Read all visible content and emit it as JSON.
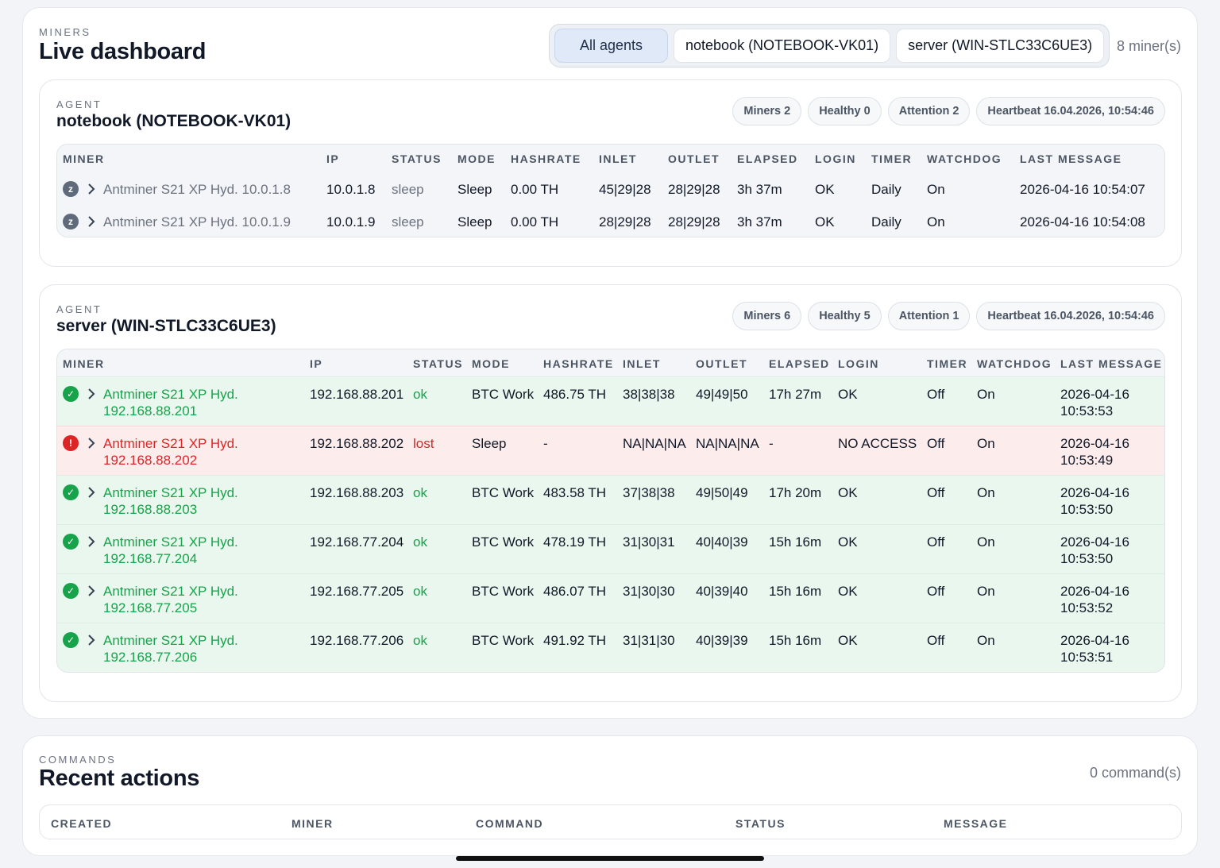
{
  "header": {
    "eyebrow": "MINERS",
    "title": "Live dashboard",
    "filters": [
      "All agents",
      "notebook (NOTEBOOK-VK01)",
      "server (WIN-STLC33C6UE3)"
    ],
    "active_filter": "All agents",
    "miner_count": "8 miner(s)"
  },
  "table_columns": [
    "MINER",
    "IP",
    "STATUS",
    "MODE",
    "HASHRATE",
    "INLET",
    "OUTLET",
    "ELAPSED",
    "LOGIN",
    "TIMER",
    "WATCHDOG",
    "LAST MESSAGE"
  ],
  "agents": [
    {
      "eyebrow": "AGENT",
      "name": "notebook (NOTEBOOK-VK01)",
      "pills": [
        "Miners 2",
        "Healthy 0",
        "Attention 2",
        "Heartbeat 16.04.2026, 10:54:46"
      ],
      "rows": [
        {
          "state": "sleep",
          "icon": "sleep-icon",
          "icon_glyph": "z",
          "miner": "Antminer S21 XP Hyd. 10.0.1.8",
          "ip": "10.0.1.8",
          "status": "sleep",
          "mode": "Sleep",
          "hashrate": "0.00 TH",
          "inlet": "45|29|28",
          "outlet": "28|29|28",
          "elapsed": "3h 37m",
          "login": "OK",
          "timer": "Daily",
          "watchdog": "On",
          "last_message": "2026-04-16 10:54:07"
        },
        {
          "state": "sleep",
          "icon": "sleep-icon",
          "icon_glyph": "z",
          "miner": "Antminer S21 XP Hyd. 10.0.1.9",
          "ip": "10.0.1.9",
          "status": "sleep",
          "mode": "Sleep",
          "hashrate": "0.00 TH",
          "inlet": "28|29|28",
          "outlet": "28|29|28",
          "elapsed": "3h 37m",
          "login": "OK",
          "timer": "Daily",
          "watchdog": "On",
          "last_message": "2026-04-16 10:54:08"
        }
      ]
    },
    {
      "eyebrow": "AGENT",
      "name": "server (WIN-STLC33C6UE3)",
      "pills": [
        "Miners 6",
        "Healthy 5",
        "Attention 1",
        "Heartbeat 16.04.2026, 10:54:46"
      ],
      "rows": [
        {
          "state": "ok",
          "icon": "check-icon",
          "icon_glyph": "✓",
          "miner_line1": "Antminer S21 XP Hyd.",
          "miner_line2": "192.168.88.201",
          "ip": "192.168.88.201",
          "status": "ok",
          "mode": "BTC Work",
          "hashrate": "486.75 TH",
          "inlet": "38|38|38",
          "outlet": "49|49|50",
          "elapsed": "17h 27m",
          "login": "OK",
          "timer": "Off",
          "watchdog": "On",
          "last_date": "2026-04-16",
          "last_time": "10:53:53"
        },
        {
          "state": "lost",
          "icon": "alert-icon",
          "icon_glyph": "!",
          "miner_line1": "Antminer S21 XP Hyd.",
          "miner_line2": "192.168.88.202",
          "ip": "192.168.88.202",
          "status": "lost",
          "mode": "Sleep",
          "hashrate": "-",
          "inlet": "NA|NA|NA",
          "outlet": "NA|NA|NA",
          "elapsed": "-",
          "login": "NO ACCESS",
          "timer": "Off",
          "watchdog": "On",
          "last_date": "2026-04-16",
          "last_time": "10:53:49"
        },
        {
          "state": "ok",
          "icon": "check-icon",
          "icon_glyph": "✓",
          "miner_line1": "Antminer S21 XP Hyd.",
          "miner_line2": "192.168.88.203",
          "ip": "192.168.88.203",
          "status": "ok",
          "mode": "BTC Work",
          "hashrate": "483.58 TH",
          "inlet": "37|38|38",
          "outlet": "49|50|49",
          "elapsed": "17h 20m",
          "login": "OK",
          "timer": "Off",
          "watchdog": "On",
          "last_date": "2026-04-16",
          "last_time": "10:53:50"
        },
        {
          "state": "ok",
          "icon": "check-icon",
          "icon_glyph": "✓",
          "miner_line1": "Antminer S21 XP Hyd.",
          "miner_line2": "192.168.77.204",
          "ip": "192.168.77.204",
          "status": "ok",
          "mode": "BTC Work",
          "hashrate": "478.19 TH",
          "inlet": "31|30|31",
          "outlet": "40|40|39",
          "elapsed": "15h 16m",
          "login": "OK",
          "timer": "Off",
          "watchdog": "On",
          "last_date": "2026-04-16",
          "last_time": "10:53:50"
        },
        {
          "state": "ok",
          "icon": "check-icon",
          "icon_glyph": "✓",
          "miner_line1": "Antminer S21 XP Hyd.",
          "miner_line2": "192.168.77.205",
          "ip": "192.168.77.205",
          "status": "ok",
          "mode": "BTC Work",
          "hashrate": "486.07 TH",
          "inlet": "31|30|30",
          "outlet": "40|39|40",
          "elapsed": "15h 16m",
          "login": "OK",
          "timer": "Off",
          "watchdog": "On",
          "last_date": "2026-04-16",
          "last_time": "10:53:52"
        },
        {
          "state": "ok",
          "icon": "check-icon",
          "icon_glyph": "✓",
          "miner_line1": "Antminer S21 XP Hyd.",
          "miner_line2": "192.168.77.206",
          "ip": "192.168.77.206",
          "status": "ok",
          "mode": "BTC Work",
          "hashrate": "491.92 TH",
          "inlet": "31|31|30",
          "outlet": "40|39|39",
          "elapsed": "15h 16m",
          "login": "OK",
          "timer": "Off",
          "watchdog": "On",
          "last_date": "2026-04-16",
          "last_time": "10:53:51"
        }
      ]
    }
  ],
  "commands": {
    "eyebrow": "COMMANDS",
    "title": "Recent actions",
    "count": "0 command(s)",
    "columns": [
      "CREATED",
      "MINER",
      "COMMAND",
      "STATUS",
      "MESSAGE"
    ]
  },
  "colors": {
    "ok": "#16a34a",
    "lost": "#dc2626",
    "sleep": "#6b7280",
    "ok_row_bg": "#eaf7ee",
    "lost_row_bg": "#fdecec",
    "active_filter_bg": "#dfe9f7"
  }
}
